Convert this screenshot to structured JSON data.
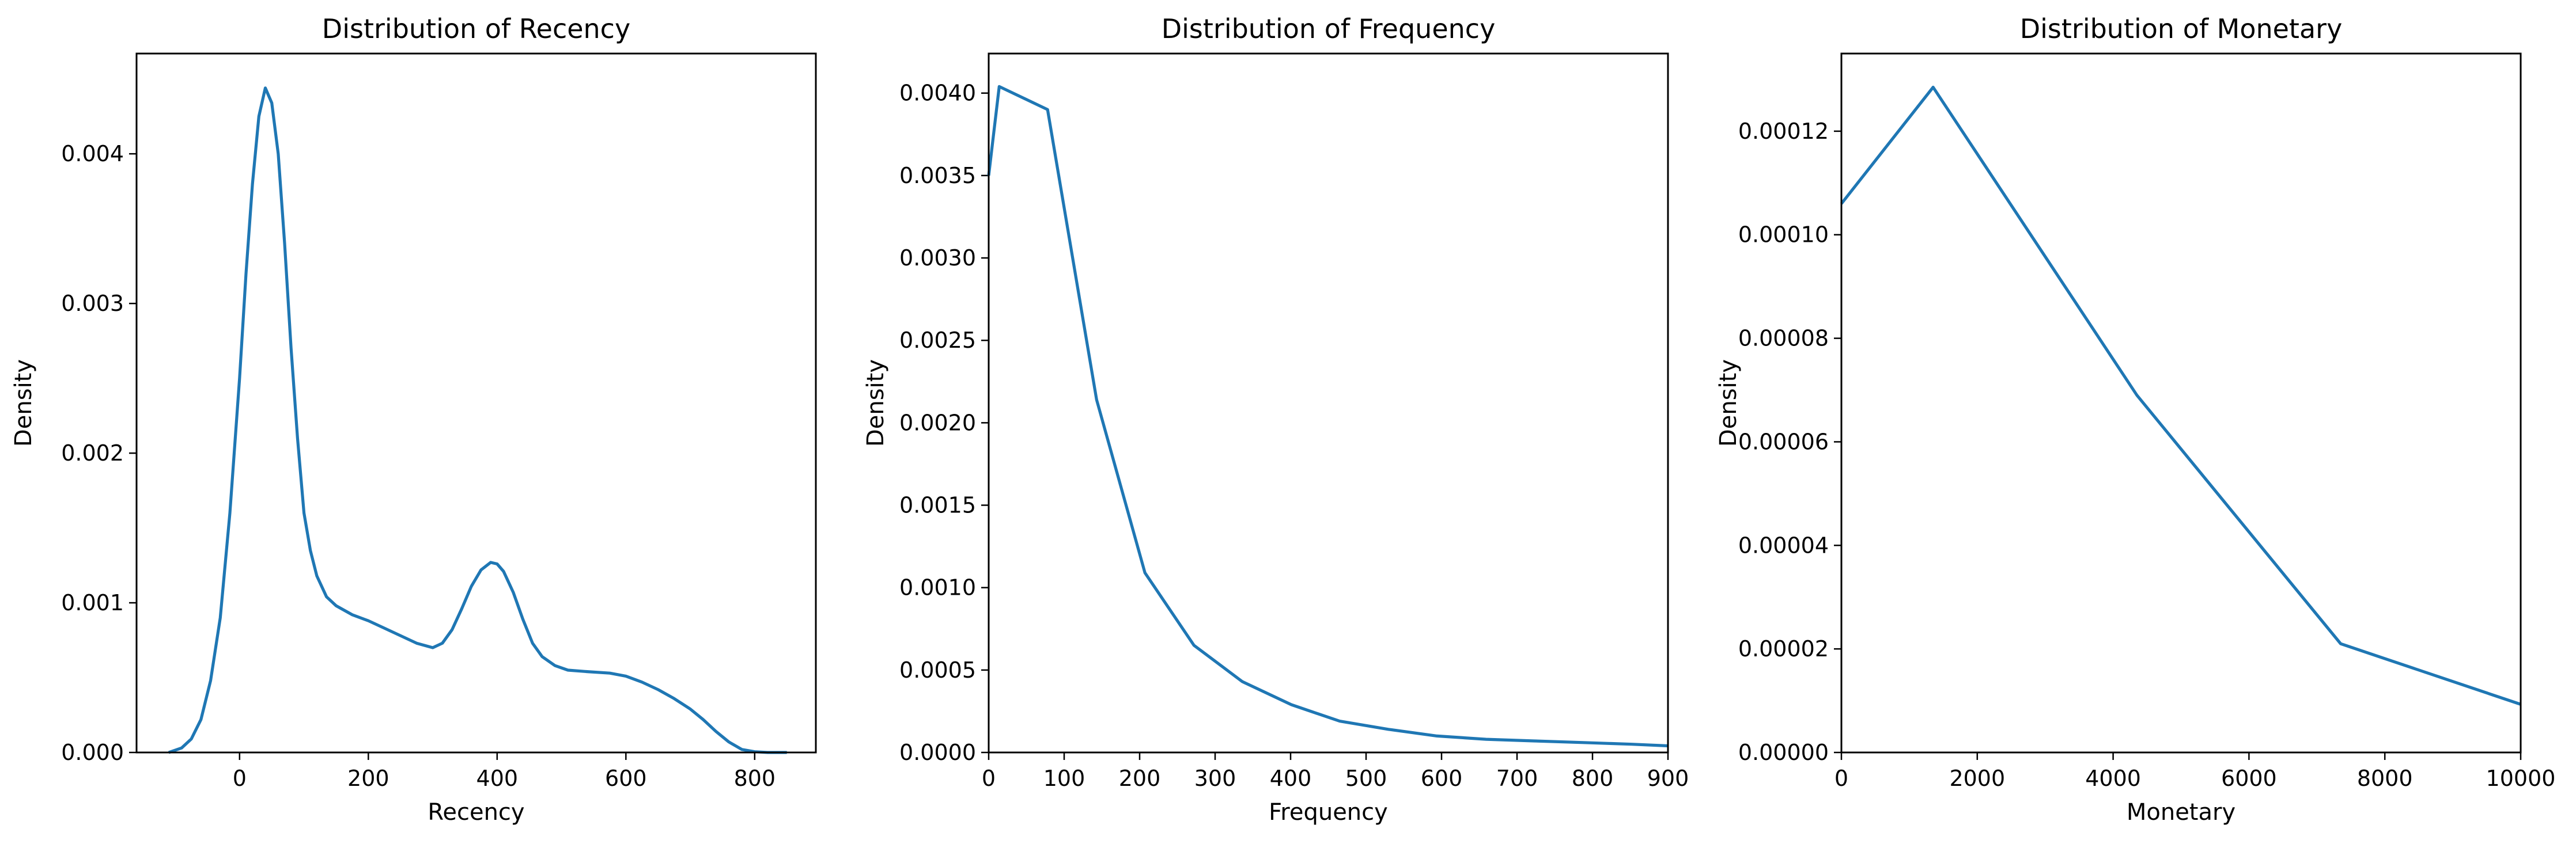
{
  "chart_data": [
    {
      "type": "line",
      "title": "Distribution of Recency",
      "xlabel": "Recency",
      "ylabel": "Density",
      "xlim": [
        -160,
        895
      ],
      "ylim": [
        0,
        0.00467
      ],
      "xticks": [
        0,
        200,
        400,
        600,
        800
      ],
      "xtick_labels": [
        "0",
        "200",
        "400",
        "600",
        "800"
      ],
      "yticks": [
        0,
        0.001,
        0.002,
        0.003,
        0.004
      ],
      "ytick_labels": [
        "0.000",
        "0.001",
        "0.002",
        "0.003",
        "0.004"
      ],
      "color": "#1f77b4",
      "grid": false,
      "series": [
        {
          "x": [
            -110,
            -90,
            -75,
            -60,
            -45,
            -30,
            -15,
            0,
            10,
            20,
            30,
            40,
            50,
            60,
            70,
            80,
            90,
            100,
            110,
            120,
            135,
            150,
            175,
            200,
            225,
            250,
            275,
            300,
            315,
            330,
            345,
            360,
            375,
            390,
            400,
            410,
            425,
            440,
            455,
            470,
            490,
            510,
            540,
            575,
            600,
            625,
            650,
            675,
            700,
            720,
            740,
            760,
            780,
            800,
            820,
            850
          ],
          "y": [
            0.0,
            3e-05,
            9e-05,
            0.00022,
            0.00048,
            0.0009,
            0.0016,
            0.0025,
            0.0032,
            0.0038,
            0.00425,
            0.00444,
            0.00434,
            0.004,
            0.0034,
            0.0027,
            0.0021,
            0.0016,
            0.00135,
            0.00118,
            0.00104,
            0.00098,
            0.00092,
            0.00088,
            0.00083,
            0.00078,
            0.00073,
            0.0007,
            0.00073,
            0.00082,
            0.00096,
            0.00111,
            0.00122,
            0.00127,
            0.00126,
            0.00121,
            0.00107,
            0.00089,
            0.00073,
            0.00064,
            0.00058,
            0.00055,
            0.00054,
            0.00053,
            0.00051,
            0.00047,
            0.00042,
            0.00036,
            0.00029,
            0.00022,
            0.00014,
            7e-05,
            2e-05,
            5e-06,
            0.0,
            0.0
          ]
        }
      ]
    },
    {
      "type": "line",
      "title": "Distribution of Frequency",
      "xlabel": "Frequency",
      "ylabel": "Density",
      "xlim": [
        0,
        900
      ],
      "ylim": [
        0,
        0.00424
      ],
      "xticks": [
        0,
        100,
        200,
        300,
        400,
        500,
        600,
        700,
        800,
        900
      ],
      "xtick_labels": [
        "0",
        "100",
        "200",
        "300",
        "400",
        "500",
        "600",
        "700",
        "800",
        "900"
      ],
      "yticks": [
        0,
        0.0005,
        0.001,
        0.0015,
        0.002,
        0.0025,
        0.003,
        0.0035,
        0.004
      ],
      "ytick_labels": [
        "0.0000",
        "0.0005",
        "0.0010",
        "0.0015",
        "0.0020",
        "0.0025",
        "0.0030",
        "0.0035",
        "0.0040"
      ],
      "color": "#1f77b4",
      "grid": false,
      "series": [
        {
          "x": [
            0,
            14,
            78,
            143,
            207,
            272,
            336,
            401,
            465,
            530,
            594,
            659,
            723,
            788,
            852,
            900
          ],
          "y": [
            0.0035,
            0.00404,
            0.0039,
            0.00214,
            0.00109,
            0.00065,
            0.00043,
            0.00029,
            0.00019,
            0.00014,
            0.0001,
            8e-05,
            7e-05,
            6e-05,
            5e-05,
            4e-05
          ]
        }
      ]
    },
    {
      "type": "line",
      "title": "Distribution of Monetary",
      "xlabel": "Monetary",
      "ylabel": "Density",
      "xlim": [
        0,
        10000
      ],
      "ylim": [
        0,
        0.000135
      ],
      "xticks": [
        0,
        2000,
        4000,
        6000,
        8000,
        10000
      ],
      "xtick_labels": [
        "0",
        "2000",
        "4000",
        "6000",
        "8000",
        "10000"
      ],
      "yticks": [
        0,
        2e-05,
        4e-05,
        6e-05,
        8e-05,
        0.0001,
        0.00012
      ],
      "ytick_labels": [
        "0.00000",
        "0.00002",
        "0.00004",
        "0.00006",
        "0.00008",
        "0.00010",
        "0.00012"
      ],
      "color": "#1f77b4",
      "grid": false,
      "series": [
        {
          "x": [
            0,
            1350,
            4350,
            7350,
            10000
          ],
          "y": [
            0.000106,
            0.0001285,
            6.9e-05,
            2.1e-05,
            9.3e-06
          ]
        }
      ]
    }
  ]
}
